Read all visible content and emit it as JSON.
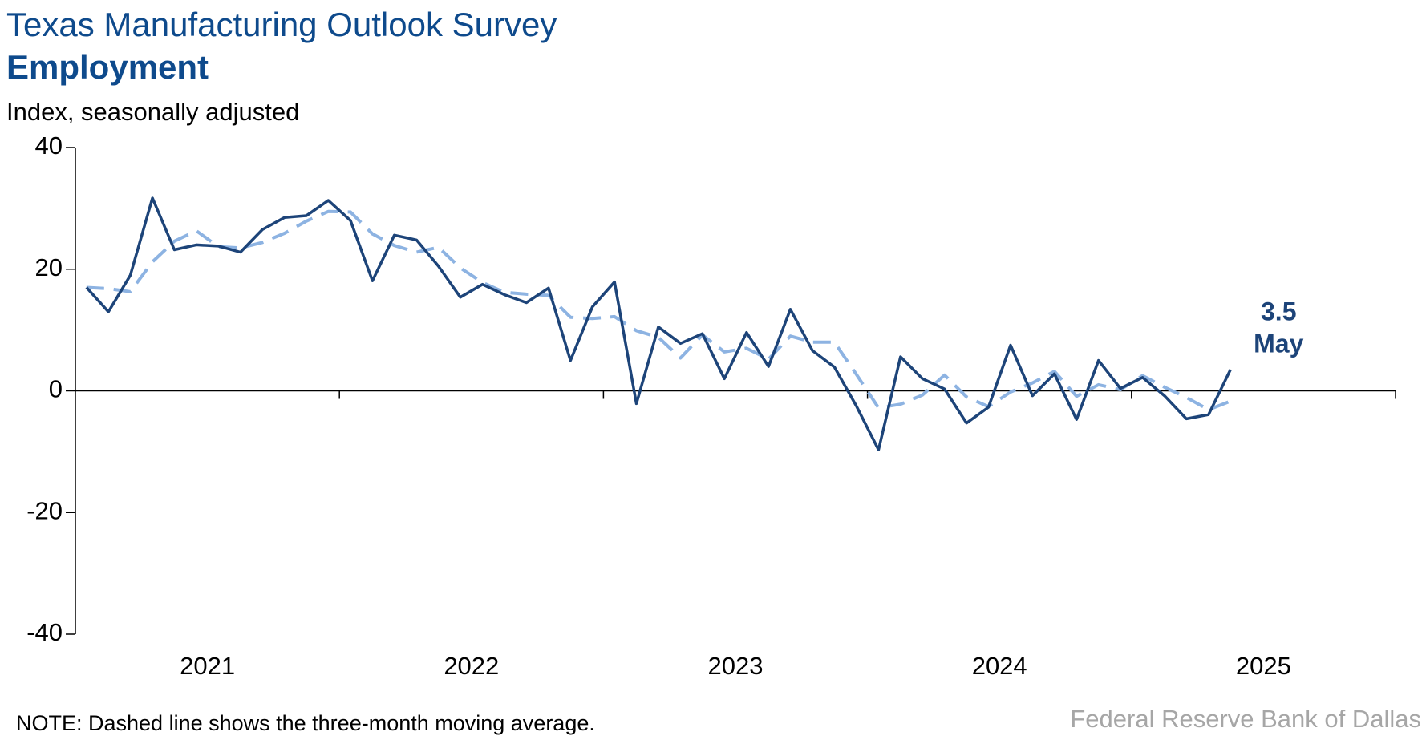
{
  "chart_data": {
    "type": "line",
    "title": "Texas Manufacturing Outlook Survey",
    "subtitle": "Employment",
    "y_label": "Index, seasonally adjusted",
    "note": "NOTE: Dashed line shows the three-month moving average.",
    "source": "Federal Reserve Bank of Dallas",
    "annotation": {
      "value_label": "3.5",
      "month": "May"
    },
    "x": [
      2021.042,
      2021.125,
      2021.208,
      2021.292,
      2021.375,
      2021.458,
      2021.542,
      2021.625,
      2021.708,
      2021.792,
      2021.875,
      2021.958,
      2022.042,
      2022.125,
      2022.208,
      2022.292,
      2022.375,
      2022.458,
      2022.542,
      2022.625,
      2022.708,
      2022.792,
      2022.875,
      2022.958,
      2023.042,
      2023.125,
      2023.208,
      2023.292,
      2023.375,
      2023.458,
      2023.542,
      2023.625,
      2023.708,
      2023.792,
      2023.875,
      2023.958,
      2024.042,
      2024.125,
      2024.208,
      2024.292,
      2024.375,
      2024.458,
      2024.542,
      2024.625,
      2024.708,
      2024.792,
      2024.875,
      2024.958,
      2025.042,
      2025.125,
      2025.208,
      2025.292,
      2025.375
    ],
    "series": [
      {
        "name": "Employment",
        "color": "#1d4479",
        "dashed": false,
        "values": [
          17,
          13,
          19,
          31.7,
          23.2,
          24,
          23.8,
          22.8,
          26.5,
          28.5,
          28.8,
          31.3,
          28,
          18.1,
          25.6,
          24.8,
          20.5,
          15.4,
          17.5,
          15.8,
          14.5,
          16.9,
          5,
          13.8,
          17.9,
          -2.1,
          10.5,
          7.8,
          9.4,
          2,
          9.6,
          4,
          13.4,
          6.6,
          3.9,
          -2.5,
          -9.7,
          5.6,
          2,
          0.3,
          -5.3,
          -2.7,
          7.5,
          -0.8,
          2.8,
          -4.7,
          5,
          0.4,
          2.2,
          -0.8,
          -4.6,
          -3.9,
          3.5
        ]
      },
      {
        "name": "Three-month moving average",
        "color": "#8db3e2",
        "dashed": true,
        "values": [
          17,
          16.8,
          16.3,
          21.2,
          24.6,
          26.3,
          23.7,
          23.5,
          24.4,
          25.9,
          27.9,
          29.5,
          29.4,
          25.8,
          23.9,
          22.8,
          23.6,
          20.2,
          17.8,
          16.2,
          15.9,
          15.7,
          12.1,
          11.9,
          12.2,
          9.9,
          8.8,
          5.4,
          9.2,
          6.4,
          7,
          5.2,
          9,
          8,
          8,
          2.7,
          -2.8,
          -2.2,
          -0.7,
          2.6,
          -1,
          -2.6,
          -0.2,
          1.3,
          3.2,
          -0.9,
          1,
          0.2,
          2.5,
          0.6,
          -1.1,
          -3.1,
          -1.7
        ]
      }
    ],
    "xlim": [
      2021,
      2026
    ],
    "xticks": [
      {
        "value": 2021.5,
        "label": "2021"
      },
      {
        "value": 2022.5,
        "label": "2022"
      },
      {
        "value": 2023.5,
        "label": "2023"
      },
      {
        "value": 2024.5,
        "label": "2024"
      },
      {
        "value": 2025.5,
        "label": "2025"
      }
    ],
    "x_tick_marks": [
      2022,
      2023,
      2024,
      2025,
      2026
    ],
    "ylim": [
      -40,
      40
    ],
    "yticks": [
      -40,
      -20,
      0,
      20,
      40
    ]
  }
}
